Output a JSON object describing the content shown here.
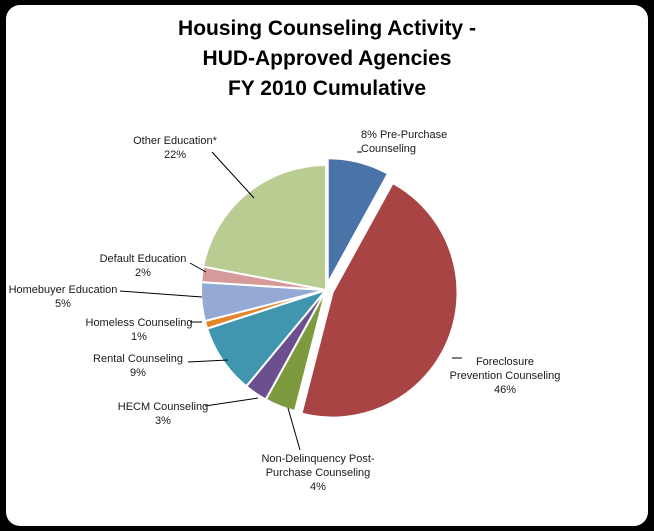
{
  "chart_data": {
    "type": "pie",
    "title_lines": [
      "Housing Counseling Activity -",
      "HUD-Approved Agencies",
      "FY 2010  Cumulative"
    ],
    "slices": [
      {
        "label_lines": [
          "8% Pre-Purchase",
          "Counseling"
        ],
        "value": 8,
        "color": "#4a73a8",
        "exploded": true
      },
      {
        "label_lines": [
          "Foreclosure",
          "Prevention Counseling",
          "46%"
        ],
        "value": 46,
        "color": "#a84444",
        "exploded": true
      },
      {
        "label_lines": [
          "Non-Delinquency Post-",
          "Purchase Counseling",
          "4%"
        ],
        "value": 4,
        "color": "#7d9a3e",
        "exploded": false
      },
      {
        "label_lines": [
          "HECM Counseling",
          "3%"
        ],
        "value": 3,
        "color": "#6b4f8e",
        "exploded": false
      },
      {
        "label_lines": [
          "Rental Counseling",
          "9%"
        ],
        "value": 9,
        "color": "#3f96ae",
        "exploded": false
      },
      {
        "label_lines": [
          "Homeless Counseling",
          "1%"
        ],
        "value": 1,
        "color": "#e5842a",
        "exploded": false
      },
      {
        "label_lines": [
          "Homebuyer Education",
          "5%"
        ],
        "value": 5,
        "color": "#94aad5",
        "exploded": false
      },
      {
        "label_lines": [
          "Default Education",
          "2%"
        ],
        "value": 2,
        "color": "#d79a9a",
        "exploded": false
      },
      {
        "label_lines": [
          "Other Education*",
          "22%"
        ],
        "value": 22,
        "color": "#b9cd93",
        "exploded": false
      }
    ]
  }
}
